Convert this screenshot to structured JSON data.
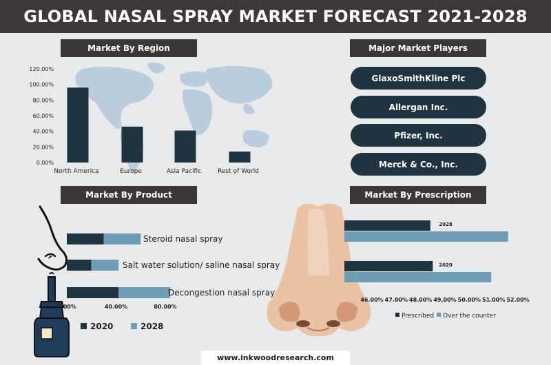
{
  "title": "GLOBAL NASAL SPRAY MARKET FORECAST 2021-2028",
  "footer": "www.inkwoodresearch.com",
  "colors": {
    "dark": "#1e3441",
    "light": "#6f9db5",
    "header": "#3c3739",
    "map": "#b7cbdb"
  },
  "region": {
    "heading": "Market By Region",
    "chart_data": {
      "type": "bar",
      "categories": [
        "North America",
        "Europe",
        "Asia Pacific",
        "Rest of World"
      ],
      "values": [
        96,
        46,
        41,
        14
      ],
      "ylim": [
        0,
        120
      ],
      "yticks": [
        "0.00%",
        "20.00%",
        "40.00%",
        "60.00%",
        "80.00%",
        "100.00%",
        "120.00%"
      ]
    }
  },
  "players": {
    "heading": "Major Market Players",
    "items": [
      "GlaxoSmithKline Plc",
      "Allergan Inc.",
      "Pfizer, Inc.",
      "Merck & Co., Inc."
    ]
  },
  "product": {
    "heading": "Market By Product",
    "chart_data": {
      "type": "bar",
      "orientation": "horizontal",
      "stacked": true,
      "categories": [
        "Steroid nasal spray",
        "Salt water solution/ saline nasal spray",
        "Decongestion nasal spray"
      ],
      "series": [
        {
          "name": "2020",
          "values": [
            30,
            20,
            42
          ]
        },
        {
          "name": "2028",
          "values": [
            30,
            22,
            42
          ]
        }
      ],
      "xlim": [
        0,
        80
      ],
      "xticks": [
        "0.00%",
        "40.00%",
        "80.00%"
      ]
    }
  },
  "prescription": {
    "heading": "Market By Prescription",
    "chart_data": {
      "type": "bar",
      "orientation": "horizontal",
      "categories": [
        "2028",
        "2020"
      ],
      "series": [
        {
          "name": "Prescribed",
          "values": [
            48.4,
            48.5
          ]
        },
        {
          "name": "Over the counter",
          "values": [
            51.6,
            50.9
          ]
        }
      ],
      "xlim": [
        46,
        52
      ],
      "xticks": [
        "46.00%",
        "47.00%",
        "48.00%",
        "49.00%",
        "50.00%",
        "51.00%",
        "52.00%"
      ]
    }
  }
}
